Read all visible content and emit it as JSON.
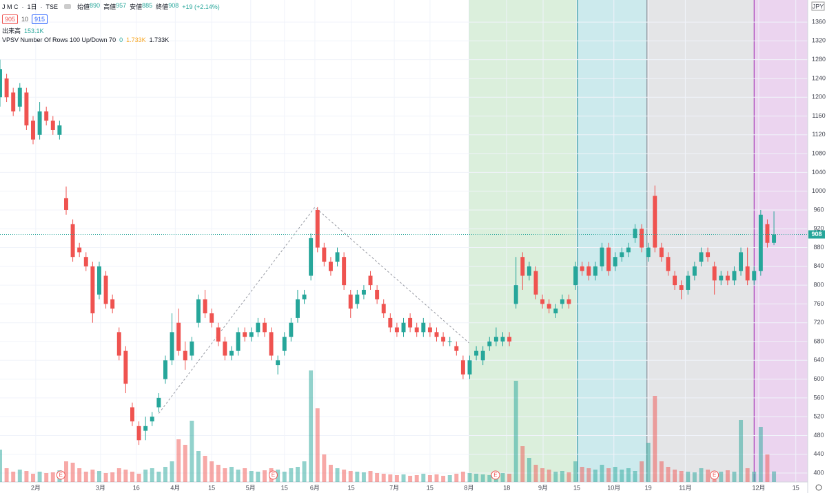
{
  "header": {
    "symbol": "J M C",
    "interval": "1日",
    "exchange": "TSE",
    "ohlc": [
      {
        "label": "始値",
        "value": "890"
      },
      {
        "label": "高値",
        "value": "957"
      },
      {
        "label": "安値",
        "value": "885"
      },
      {
        "label": "終値",
        "value": "908"
      }
    ],
    "change": "+19 (+2.14%)",
    "bid": "905",
    "spread": "10",
    "ask": "915",
    "volume_label": "出来高",
    "volume_value": "153.1K",
    "indicator": "VPSV Number Of Rows 100 Up/Down 70",
    "indicator_values": [
      "0",
      "1.733K",
      "1.733K"
    ]
  },
  "chart_data": {
    "type": "candlestick",
    "currency": "JPY",
    "up_color": "#26a69a",
    "down_color": "#ef5350",
    "grid": true,
    "x": [
      0,
      1,
      2,
      3,
      4,
      5,
      6,
      7,
      8,
      9,
      10,
      11,
      12,
      13,
      14,
      15,
      16,
      17,
      18,
      19,
      20,
      21,
      22,
      23,
      24,
      25,
      26,
      27,
      28,
      29,
      30,
      31,
      32,
      33,
      34,
      35,
      36,
      37,
      38,
      39,
      40,
      41,
      42,
      43,
      44,
      45,
      46,
      47,
      48,
      49,
      50,
      51,
      52,
      53,
      54,
      55,
      56,
      57,
      58,
      59,
      60,
      61,
      62,
      63,
      64,
      65,
      66,
      67,
      68,
      69,
      70,
      71,
      72,
      73,
      74,
      75,
      76,
      77,
      78,
      79,
      80,
      81,
      82,
      83,
      84,
      85,
      86,
      87,
      88,
      89,
      90,
      91,
      92,
      93,
      94,
      95,
      96,
      97,
      98,
      99,
      100,
      101,
      102,
      103,
      104,
      105,
      106,
      107,
      108,
      109,
      110,
      111,
      112,
      113,
      114,
      115,
      116,
      117
    ],
    "open": [
      1200,
      1240,
      1210,
      1180,
      1210,
      1150,
      1120,
      1170,
      1150,
      1120,
      985,
      930,
      880,
      860,
      840,
      780,
      820,
      770,
      700,
      660,
      540,
      500,
      490,
      510,
      540,
      600,
      640,
      720,
      660,
      650,
      720,
      770,
      740,
      710,
      680,
      650,
      660,
      700,
      690,
      700,
      720,
      700,
      630,
      660,
      690,
      730,
      770,
      820,
      960,
      880,
      850,
      850,
      860,
      780,
      760,
      780,
      820,
      790,
      760,
      730,
      710,
      700,
      730,
      710,
      700,
      710,
      700,
      690,
      680,
      670,
      640,
      610,
      650,
      640,
      670,
      680,
      680,
      690,
      760,
      860,
      820,
      830,
      770,
      760,
      740,
      760,
      770,
      800,
      840,
      840,
      820,
      840,
      880,
      840,
      860,
      870,
      900,
      920,
      860,
      990,
      880,
      860,
      820,
      800,
      790,
      820,
      850,
      870,
      840,
      810,
      820,
      810,
      830,
      840,
      810,
      830,
      930,
      890
    ],
    "high": [
      1280,
      1250,
      1220,
      1230,
      1220,
      1160,
      1190,
      1180,
      1160,
      1150,
      1010,
      940,
      890,
      870,
      850,
      850,
      830,
      780,
      710,
      670,
      550,
      510,
      520,
      530,
      570,
      650,
      740,
      750,
      680,
      690,
      780,
      790,
      750,
      720,
      690,
      670,
      710,
      710,
      710,
      730,
      730,
      710,
      650,
      700,
      730,
      790,
      790,
      910,
      966,
      890,
      860,
      880,
      870,
      790,
      790,
      800,
      830,
      800,
      770,
      740,
      720,
      730,
      740,
      720,
      730,
      720,
      710,
      700,
      690,
      680,
      650,
      650,
      670,
      670,
      690,
      710,
      700,
      700,
      860,
      870,
      850,
      840,
      780,
      770,
      760,
      780,
      780,
      850,
      850,
      850,
      850,
      890,
      890,
      870,
      880,
      890,
      930,
      930,
      890,
      1012,
      890,
      870,
      830,
      810,
      830,
      850,
      880,
      880,
      850,
      830,
      830,
      840,
      880,
      880,
      840,
      960,
      940,
      957
    ],
    "low": [
      1180,
      1190,
      1160,
      1170,
      1130,
      1100,
      1110,
      1140,
      1120,
      1110,
      950,
      850,
      860,
      830,
      720,
      770,
      750,
      740,
      640,
      570,
      500,
      460,
      470,
      500,
      530,
      590,
      630,
      650,
      620,
      640,
      710,
      730,
      710,
      670,
      640,
      640,
      650,
      680,
      680,
      690,
      690,
      640,
      610,
      650,
      680,
      720,
      760,
      810,
      870,
      840,
      820,
      840,
      790,
      730,
      750,
      770,
      790,
      760,
      730,
      700,
      690,
      690,
      700,
      690,
      690,
      690,
      680,
      670,
      670,
      650,
      600,
      600,
      640,
      630,
      660,
      670,
      670,
      670,
      750,
      790,
      810,
      770,
      750,
      740,
      730,
      750,
      750,
      790,
      820,
      810,
      810,
      830,
      820,
      830,
      850,
      860,
      890,
      870,
      850,
      870,
      850,
      820,
      790,
      770,
      780,
      810,
      840,
      850,
      780,
      800,
      800,
      800,
      820,
      800,
      800,
      820,
      880,
      885
    ],
    "close": [
      1260,
      1200,
      1170,
      1220,
      1140,
      1110,
      1170,
      1150,
      1130,
      1140,
      960,
      860,
      870,
      840,
      740,
      840,
      760,
      750,
      650,
      590,
      510,
      470,
      500,
      520,
      560,
      640,
      700,
      660,
      640,
      680,
      770,
      740,
      720,
      680,
      650,
      660,
      700,
      690,
      700,
      720,
      700,
      650,
      640,
      690,
      720,
      770,
      780,
      900,
      880,
      850,
      830,
      870,
      800,
      750,
      780,
      790,
      800,
      770,
      740,
      710,
      700,
      720,
      710,
      700,
      720,
      700,
      690,
      680,
      680,
      660,
      610,
      640,
      660,
      660,
      680,
      690,
      690,
      680,
      800,
      820,
      840,
      780,
      760,
      750,
      750,
      770,
      760,
      840,
      830,
      820,
      840,
      880,
      830,
      860,
      870,
      880,
      920,
      880,
      880,
      880,
      860,
      830,
      800,
      790,
      820,
      840,
      870,
      860,
      810,
      820,
      810,
      830,
      870,
      810,
      830,
      950,
      890,
      908
    ],
    "volume": [
      470,
      200,
      150,
      180,
      160,
      120,
      150,
      130,
      140,
      170,
      300,
      280,
      200,
      150,
      180,
      160,
      130,
      140,
      200,
      180,
      150,
      120,
      180,
      200,
      150,
      220,
      300,
      620,
      540,
      890,
      450,
      380,
      300,
      250,
      200,
      220,
      180,
      200,
      160,
      150,
      170,
      200,
      180,
      150,
      200,
      220,
      300,
      1620,
      1070,
      400,
      250,
      200,
      180,
      160,
      150,
      140,
      160,
      130,
      120,
      110,
      100,
      110,
      90,
      100,
      120,
      100,
      110,
      90,
      100,
      120,
      150,
      130,
      120,
      110,
      100,
      140,
      130,
      120,
      1470,
      520,
      350,
      250,
      200,
      180,
      150,
      160,
      140,
      300,
      220,
      200,
      180,
      250,
      200,
      220,
      180,
      200,
      160,
      300,
      570,
      1250,
      300,
      220,
      180,
      160,
      150,
      140,
      200,
      180,
      160,
      150,
      170,
      150,
      900,
      200,
      150,
      800,
      400,
      153.1
    ],
    "xlim": [
      0,
      122.1
    ],
    "ylim": [
      381,
      1407
    ],
    "vlim": [
      0,
      2000
    ],
    "yticks": [
      400,
      440,
      480,
      520,
      560,
      600,
      640,
      680,
      720,
      760,
      800,
      840,
      880,
      920,
      960,
      1000,
      1040,
      1080,
      1120,
      1160,
      1200,
      1240,
      1280,
      1320,
      1360
    ],
    "xticks": [
      {
        "value": 5.4,
        "label": "2月"
      },
      {
        "value": 15.2,
        "label": "3月"
      },
      {
        "value": 20.6,
        "label": "16"
      },
      {
        "value": 26.5,
        "label": "4月"
      },
      {
        "value": 32,
        "label": "15"
      },
      {
        "value": 37.9,
        "label": "5月"
      },
      {
        "value": 43,
        "label": "15"
      },
      {
        "value": 47.6,
        "label": "6月"
      },
      {
        "value": 53.1,
        "label": "15"
      },
      {
        "value": 59.6,
        "label": "7月"
      },
      {
        "value": 65,
        "label": "15"
      },
      {
        "value": 70.9,
        "label": "8月"
      },
      {
        "value": 76.6,
        "label": "18"
      },
      {
        "value": 82.1,
        "label": "9月"
      },
      {
        "value": 87.2,
        "label": "15"
      },
      {
        "value": 92.8,
        "label": "10月"
      },
      {
        "value": 98,
        "label": "19"
      },
      {
        "value": 103.6,
        "label": "11月"
      },
      {
        "value": 114.7,
        "label": "12月"
      },
      {
        "value": 120.3,
        "label": "15"
      }
    ],
    "regions": [
      {
        "x0": 70.9,
        "x1": 87.3,
        "color": "rgba(76,175,80,0.2)",
        "edge": "#4caf50"
      },
      {
        "x0": 87.3,
        "x1": 97.8,
        "color": "rgba(0,151,167,0.2)",
        "edge": "#00838f"
      },
      {
        "x0": 97.8,
        "x1": 114.0,
        "color": "rgba(120,123,134,0.2)",
        "edge": "#787b86"
      },
      {
        "x0": 114.0,
        "x1": 122.1,
        "color": "rgba(156,39,176,0.2)",
        "edge": "#9c27b0"
      }
    ],
    "trend_line": {
      "x": [
        24,
        47.6,
        70.9
      ],
      "y": [
        527,
        966,
        677
      ]
    },
    "earnings": [
      {
        "x": 9.2,
        "label": "E"
      },
      {
        "x": 41.3,
        "label": "E"
      },
      {
        "x": 74.9,
        "label": "E"
      },
      {
        "x": 108.0,
        "label": "E"
      }
    ]
  }
}
